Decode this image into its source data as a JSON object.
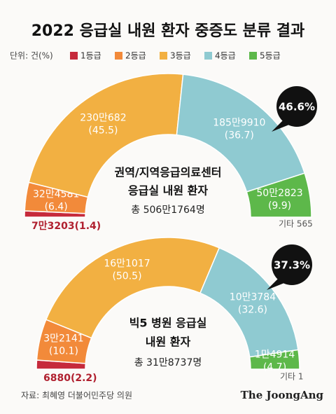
{
  "title": "2022 응급실 내원 환자 중증도 분류 결과",
  "unit": "단위: 건(%)",
  "source": "자료: 최혜영 더불어민주당 의원",
  "brand": "The JoongAng",
  "chart_data": [
    {
      "type": "pie",
      "center_text": [
        "권역/지역응급의료센터",
        "응급실 내원 환자"
      ],
      "total": "총 506만1764명",
      "other": "기타 565",
      "callout": "46.6%",
      "categories": [
        "1등급",
        "2등급",
        "3등급",
        "4등급",
        "5등급"
      ],
      "colors": [
        "#c62a3c",
        "#f28a3a",
        "#f2b042",
        "#8fcad1",
        "#5db84a"
      ],
      "values": [
        1.4,
        6.4,
        45.5,
        36.7,
        9.9
      ],
      "value_labels": [
        [
          "7만3203(1.4)"
        ],
        [
          "32만4581",
          "(6.4)"
        ],
        [
          "230만682",
          "(45.5)"
        ],
        [
          "185만9910",
          "(36.7)"
        ],
        [
          "50만2823",
          "(9.9)"
        ]
      ]
    },
    {
      "type": "pie",
      "center_text": [
        "빅5 병원 응급실",
        "내원 환자"
      ],
      "total": "총 31만8737명",
      "other": "기타 1",
      "callout": "37.3%",
      "categories": [
        "1등급",
        "2등급",
        "3등급",
        "4등급",
        "5등급"
      ],
      "colors": [
        "#c62a3c",
        "#f28a3a",
        "#f2b042",
        "#8fcad1",
        "#5db84a"
      ],
      "values": [
        2.2,
        10.1,
        50.5,
        32.6,
        4.7
      ],
      "value_labels": [
        [
          "6880(2.2)"
        ],
        [
          "3만2141",
          "(10.1)"
        ],
        [
          "16만1017",
          "(50.5)"
        ],
        [
          "10만3784",
          "(32.6)"
        ],
        [
          "1만4914",
          "(4.7)"
        ]
      ]
    }
  ]
}
